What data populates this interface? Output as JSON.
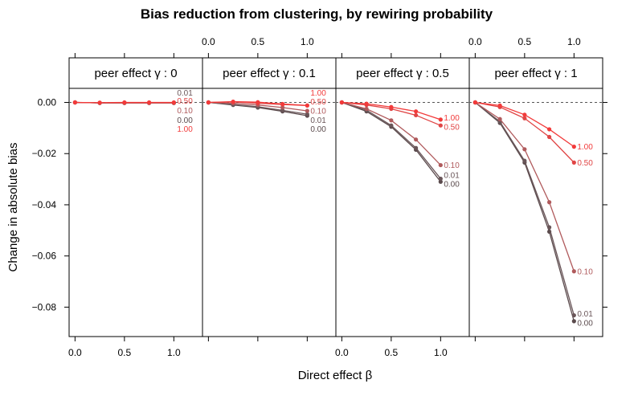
{
  "chart_data": {
    "type": "line",
    "title": "Bias reduction from clustering, by rewiring probability",
    "xlabel": "Direct effect β",
    "ylabel": "Change in absolute bias",
    "x": [
      0,
      0.25,
      0.5,
      0.75,
      1.0
    ],
    "x_ticks": [
      "0.0",
      "0.5",
      "1.0"
    ],
    "x_tick_values": [
      0,
      0.5,
      1.0
    ],
    "xlim": [
      -0.06,
      1.29
    ],
    "ylim": [
      -0.0915,
      0.0055
    ],
    "y_ticks": [
      "0.00",
      "−0.02",
      "−0.04",
      "−0.06",
      "−0.08"
    ],
    "y_tick_values": [
      0,
      -0.02,
      -0.04,
      -0.06,
      -0.08
    ],
    "reference_line": 0,
    "colors": {
      "0.00": "#5a4a4c",
      "0.01": "#6a5659",
      "0.10": "#b05a5c",
      "0.50": "#e04444",
      "1.00": "#f23a3a"
    },
    "panels": [
      {
        "strip": "peer effect γ : 0",
        "series": [
          {
            "name": "0.00",
            "values": [
              0,
              -0.0002,
              -0.0002,
              -0.0002,
              -0.0002
            ]
          },
          {
            "name": "0.01",
            "values": [
              0,
              -0.0002,
              -0.0002,
              -0.0002,
              -0.0002
            ]
          },
          {
            "name": "0.10",
            "values": [
              0,
              -0.0002,
              -0.0002,
              -0.0002,
              -0.0002
            ]
          },
          {
            "name": "0.50",
            "values": [
              0,
              -0.0001,
              -0.0001,
              -0.0001,
              -0.0001
            ]
          },
          {
            "name": "1.00",
            "values": [
              0,
              -0.0001,
              0.0,
              0.0,
              0.0
            ]
          }
        ],
        "labels": [
          {
            "text": "0.01",
            "series": "0.01",
            "y": 0.0038
          },
          {
            "text": "0.50",
            "series": "0.50",
            "y": 0.0007
          },
          {
            "text": "0.10",
            "series": "0.10",
            "y": -0.0031
          },
          {
            "text": "0.00",
            "series": "0.00",
            "y": -0.0069
          },
          {
            "text": "1.00",
            "series": "1.00",
            "y": -0.0104
          }
        ]
      },
      {
        "strip": "peer effect γ : 0.1",
        "series": [
          {
            "name": "0.00",
            "values": [
              0,
              -0.001,
              -0.002,
              -0.0035,
              -0.0052
            ]
          },
          {
            "name": "0.01",
            "values": [
              0,
              -0.0008,
              -0.0017,
              -0.0031,
              -0.0046
            ]
          },
          {
            "name": "0.10",
            "values": [
              0,
              -0.0003,
              -0.001,
              -0.002,
              -0.0033
            ]
          },
          {
            "name": "0.50",
            "values": [
              0,
              0.0002,
              -0.0003,
              -0.0008,
              -0.0012
            ]
          },
          {
            "name": "1.00",
            "values": [
              0,
              0.0003,
              0.0001,
              -0.0006,
              -0.0012
            ]
          }
        ],
        "labels": [
          {
            "text": "1.00",
            "series": "1.00",
            "y": 0.0038
          },
          {
            "text": "0.50",
            "series": "0.50",
            "y": 0.0003
          },
          {
            "text": "0.10",
            "series": "0.10",
            "y": -0.0033
          },
          {
            "text": "0.01",
            "series": "0.01",
            "y": -0.0069
          },
          {
            "text": "0.00",
            "series": "0.00",
            "y": -0.0104
          }
        ]
      },
      {
        "strip": "peer effect γ : 0.5",
        "series": [
          {
            "name": "0.00",
            "values": [
              0,
              -0.0035,
              -0.0095,
              -0.0185,
              -0.031
            ]
          },
          {
            "name": "0.01",
            "values": [
              0,
              -0.003,
              -0.009,
              -0.0178,
              -0.0298
            ]
          },
          {
            "name": "0.10",
            "values": [
              0,
              -0.0025,
              -0.007,
              -0.0145,
              -0.0245
            ]
          },
          {
            "name": "0.50",
            "values": [
              0,
              -0.001,
              -0.0025,
              -0.005,
              -0.009
            ]
          },
          {
            "name": "1.00",
            "values": [
              0,
              -0.0005,
              -0.0018,
              -0.0035,
              -0.0067
            ]
          }
        ],
        "labels": [
          {
            "text": "1.00",
            "series": "1.00",
            "y": -0.006
          },
          {
            "text": "0.50",
            "series": "0.50",
            "y": -0.0095
          },
          {
            "text": "0.10",
            "series": "0.10",
            "y": -0.0245
          },
          {
            "text": "0.01",
            "series": "0.01",
            "y": -0.0284
          },
          {
            "text": "0.00",
            "series": "0.00",
            "y": -0.0319
          }
        ]
      },
      {
        "strip": "peer effect γ : 1",
        "series": [
          {
            "name": "0.00",
            "values": [
              0,
              -0.008,
              -0.0235,
              -0.0505,
              -0.0855
            ]
          },
          {
            "name": "0.01",
            "values": [
              0,
              -0.0075,
              -0.0228,
              -0.0488,
              -0.0832
            ]
          },
          {
            "name": "0.10",
            "values": [
              0,
              -0.0065,
              -0.0183,
              -0.039,
              -0.066
            ]
          },
          {
            "name": "0.50",
            "values": [
              0,
              -0.0018,
              -0.0062,
              -0.0135,
              -0.0235
            ]
          },
          {
            "name": "1.00",
            "values": [
              0,
              -0.0012,
              -0.0048,
              -0.0105,
              -0.0173
            ]
          }
        ],
        "labels": [
          {
            "text": "1.00",
            "series": "1.00",
            "y": -0.0173
          },
          {
            "text": "0.50",
            "series": "0.50",
            "y": -0.0235
          },
          {
            "text": "0.10",
            "series": "0.10",
            "y": -0.066
          },
          {
            "text": "0.01",
            "series": "0.01",
            "y": -0.0826
          },
          {
            "text": "0.00",
            "series": "0.00",
            "y": -0.0861
          }
        ]
      }
    ]
  }
}
